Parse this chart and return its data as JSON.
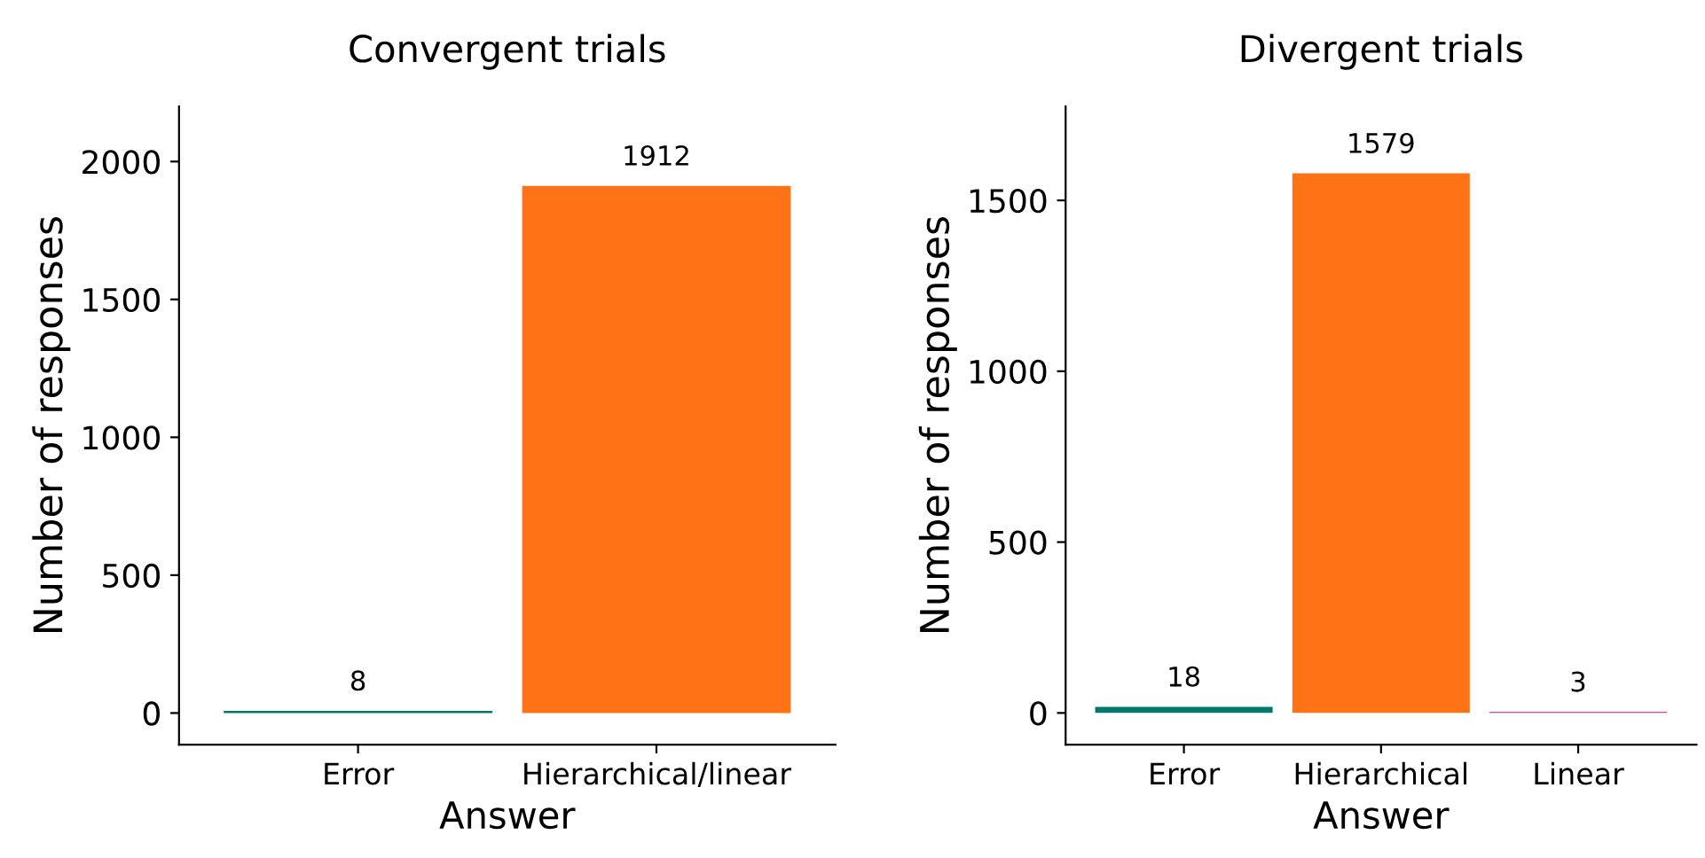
{
  "chart_data": [
    {
      "type": "bar",
      "title": "Convergent trials",
      "xlabel": "Answer",
      "ylabel": "Number of responses",
      "categories": [
        "Error",
        "Hierarchical/linear"
      ],
      "values": [
        8,
        1912
      ],
      "colors": [
        "#00796b",
        "#ff7216"
      ],
      "ylim": [
        -115,
        2200
      ],
      "yticks": [
        0,
        500,
        1000,
        1500,
        2000
      ],
      "data_labels": true,
      "grid": false,
      "legend": false
    },
    {
      "type": "bar",
      "title": "Divergent trials",
      "xlabel": "Answer",
      "ylabel": "Number of responses",
      "categories": [
        "Error",
        "Hierarchical",
        "Linear"
      ],
      "values": [
        18,
        1579,
        3
      ],
      "colors": [
        "#00796b",
        "#ff7216",
        "#c2187a"
      ],
      "ylim": [
        -93,
        1775
      ],
      "yticks": [
        0,
        500,
        1000,
        1500
      ],
      "data_labels": true,
      "grid": false,
      "legend": false
    }
  ]
}
